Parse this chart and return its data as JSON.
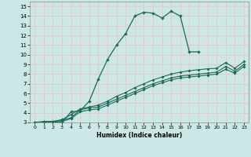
{
  "xlabel": "Humidex (Indice chaleur)",
  "bg_color": "#cce8e6",
  "grid_color": "#e8c8c8",
  "line_color": "#1a6b5a",
  "xlim": [
    -0.5,
    23.5
  ],
  "ylim": [
    3,
    15.5
  ],
  "xticks": [
    0,
    1,
    2,
    3,
    4,
    5,
    6,
    7,
    8,
    9,
    10,
    11,
    12,
    13,
    14,
    15,
    16,
    17,
    18,
    19,
    20,
    21,
    22,
    23
  ],
  "yticks": [
    3,
    4,
    5,
    6,
    7,
    8,
    9,
    10,
    11,
    12,
    13,
    14,
    15
  ],
  "line1_x": [
    0,
    1,
    2,
    3,
    4,
    5,
    6,
    7,
    8,
    9,
    10,
    11,
    12,
    13,
    14,
    15,
    16,
    17,
    18
  ],
  "line1_y": [
    3.0,
    3.1,
    3.1,
    3.0,
    4.1,
    4.2,
    5.2,
    7.5,
    9.5,
    11.0,
    12.2,
    14.0,
    14.4,
    14.3,
    13.8,
    14.5,
    14.0,
    10.3,
    10.3
  ],
  "line2_x": [
    0,
    1,
    2,
    3,
    4,
    5,
    6,
    7,
    8,
    9,
    10,
    11,
    12,
    13,
    14,
    15,
    16,
    17,
    18,
    19,
    20,
    21,
    22,
    23
  ],
  "line2_y": [
    3.0,
    3.05,
    3.1,
    3.2,
    3.5,
    4.3,
    4.5,
    4.6,
    5.0,
    5.4,
    5.8,
    6.2,
    6.6,
    7.0,
    7.3,
    7.6,
    7.8,
    7.9,
    8.0,
    8.1,
    8.2,
    8.8,
    8.3,
    9.0
  ],
  "line3_x": [
    0,
    1,
    2,
    3,
    4,
    5,
    6,
    7,
    8,
    9,
    10,
    11,
    12,
    13,
    14,
    15,
    16,
    17,
    18,
    19,
    20,
    21,
    22,
    23
  ],
  "line3_y": [
    3.0,
    3.05,
    3.1,
    3.3,
    3.8,
    4.4,
    4.6,
    4.8,
    5.2,
    5.7,
    6.1,
    6.6,
    7.0,
    7.4,
    7.7,
    8.0,
    8.2,
    8.35,
    8.45,
    8.55,
    8.6,
    9.2,
    8.6,
    9.3
  ],
  "line4_x": [
    0,
    1,
    2,
    3,
    4,
    5,
    6,
    7,
    8,
    9,
    10,
    11,
    12,
    13,
    14,
    15,
    16,
    17,
    18,
    19,
    20,
    21,
    22,
    23
  ],
  "line4_y": [
    3.0,
    3.0,
    3.0,
    3.1,
    3.4,
    4.1,
    4.3,
    4.4,
    4.8,
    5.2,
    5.6,
    6.0,
    6.4,
    6.8,
    7.1,
    7.4,
    7.6,
    7.7,
    7.8,
    7.9,
    8.0,
    8.5,
    8.1,
    8.8
  ]
}
